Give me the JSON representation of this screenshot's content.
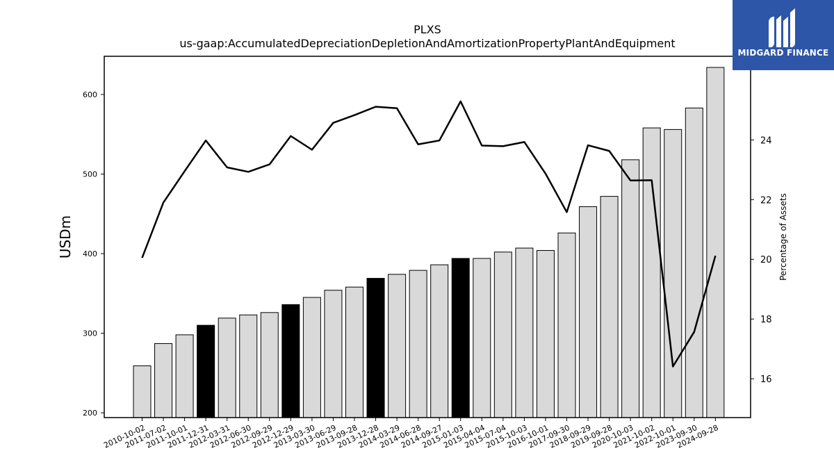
{
  "logo": {
    "text": "MIDGARD FINANCE"
  },
  "chart_data": {
    "type": "bar",
    "title": "PLXS",
    "subtitle": "us-gaap:AccumulatedDepreciationDepletionAndAmortizationPropertyPlantAndEquipment",
    "ylabel": "USDm",
    "y2label": "Percentage of Assets",
    "ylim": [
      194,
      648
    ],
    "y2lim": [
      14.7,
      26.8
    ],
    "yticks": [
      200,
      300,
      400,
      500,
      600
    ],
    "y2ticks": [
      16,
      18,
      20,
      22,
      24
    ],
    "categories": [
      "2010-10-02",
      "2011-07-02",
      "2011-10-01",
      "2011-12-31",
      "2012-03-31",
      "2012-06-30",
      "2012-09-29",
      "2012-12-29",
      "2013-03-30",
      "2013-06-29",
      "2013-09-28",
      "2013-12-28",
      "2014-03-29",
      "2014-06-28",
      "2014-09-27",
      "2015-01-03",
      "2015-04-04",
      "2015-07-04",
      "2015-10-03",
      "2016-10-01",
      "2017-09-30",
      "2018-09-29",
      "2019-09-28",
      "2020-10-03",
      "2021-10-02",
      "2022-10-01",
      "2023-09-30",
      "2024-09-28"
    ],
    "series": [
      {
        "type": "bar",
        "values": [
          259,
          287,
          298,
          310,
          319,
          323,
          326,
          336,
          345,
          354,
          358,
          369,
          374,
          379,
          386,
          394,
          394,
          402,
          407,
          404,
          426,
          459,
          472,
          518,
          558,
          556,
          583,
          634
        ],
        "highlight": [
          false,
          false,
          false,
          true,
          false,
          false,
          false,
          true,
          false,
          false,
          false,
          true,
          false,
          false,
          false,
          true,
          false,
          false,
          false,
          false,
          false,
          false,
          false,
          false,
          false,
          false,
          false,
          false
        ],
        "color": "#d9d9d9",
        "highlight_color": "#000000"
      },
      {
        "type": "line",
        "axis": "secondary",
        "values": [
          20.05,
          21.9,
          22.95,
          23.98,
          23.08,
          22.93,
          23.18,
          24.13,
          23.67,
          24.57,
          24.83,
          25.11,
          25.06,
          23.85,
          23.98,
          25.29,
          23.81,
          23.79,
          23.93,
          22.87,
          21.58,
          23.82,
          23.63,
          22.64,
          22.65,
          16.41,
          17.57,
          20.12
        ],
        "color": "#000000"
      }
    ],
    "grid": false,
    "legend": "none"
  }
}
